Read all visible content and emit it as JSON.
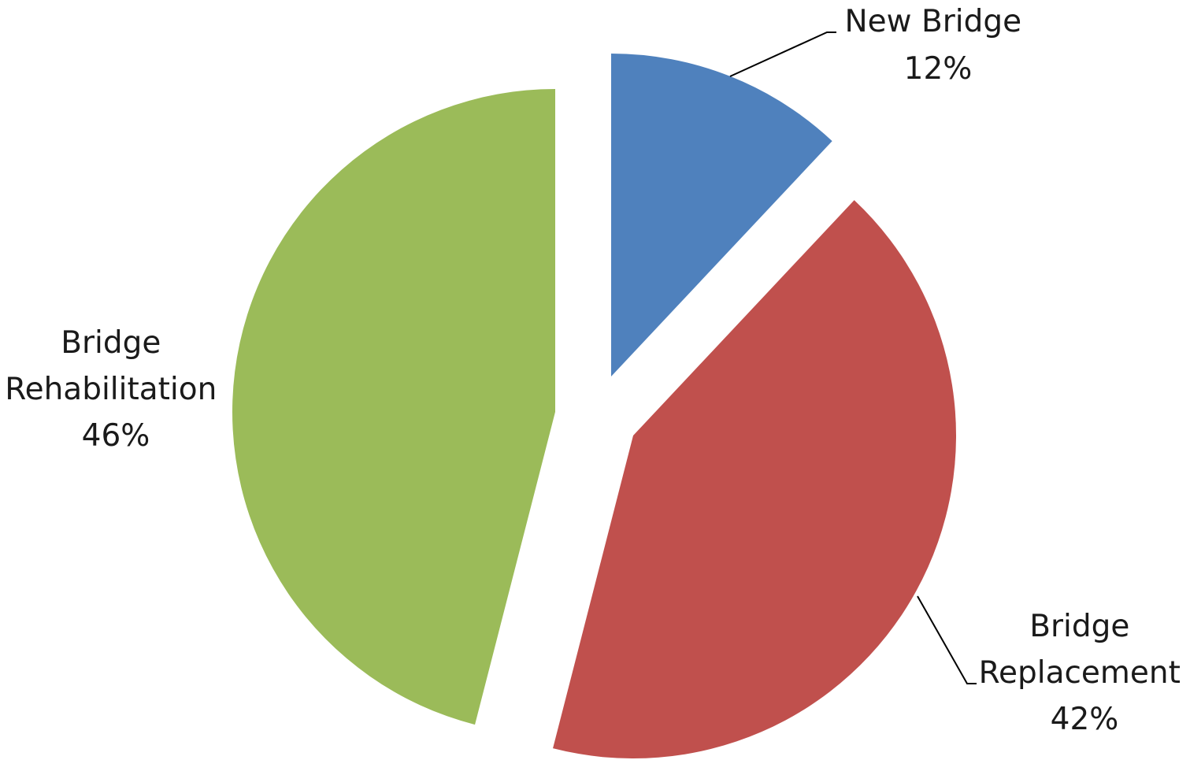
{
  "chart_data": {
    "type": "pie",
    "title": "",
    "start_angle_deg": 0,
    "direction": "clockwise",
    "exploded": true,
    "slices": [
      {
        "label": "New Bridge",
        "label_lines": [
          "New Bridge"
        ],
        "value": 12,
        "percent_label": "12%",
        "color": "#4F81BD"
      },
      {
        "label": "Bridge Replacement",
        "label_lines": [
          "Bridge",
          "Replacement"
        ],
        "value": 42,
        "percent_label": "42%",
        "color": "#C0504D"
      },
      {
        "label": "Bridge Rehabilitation",
        "label_lines": [
          "Bridge",
          "Rehabilitation"
        ],
        "value": 46,
        "percent_label": "46%",
        "color": "#9BBB59"
      }
    ]
  }
}
